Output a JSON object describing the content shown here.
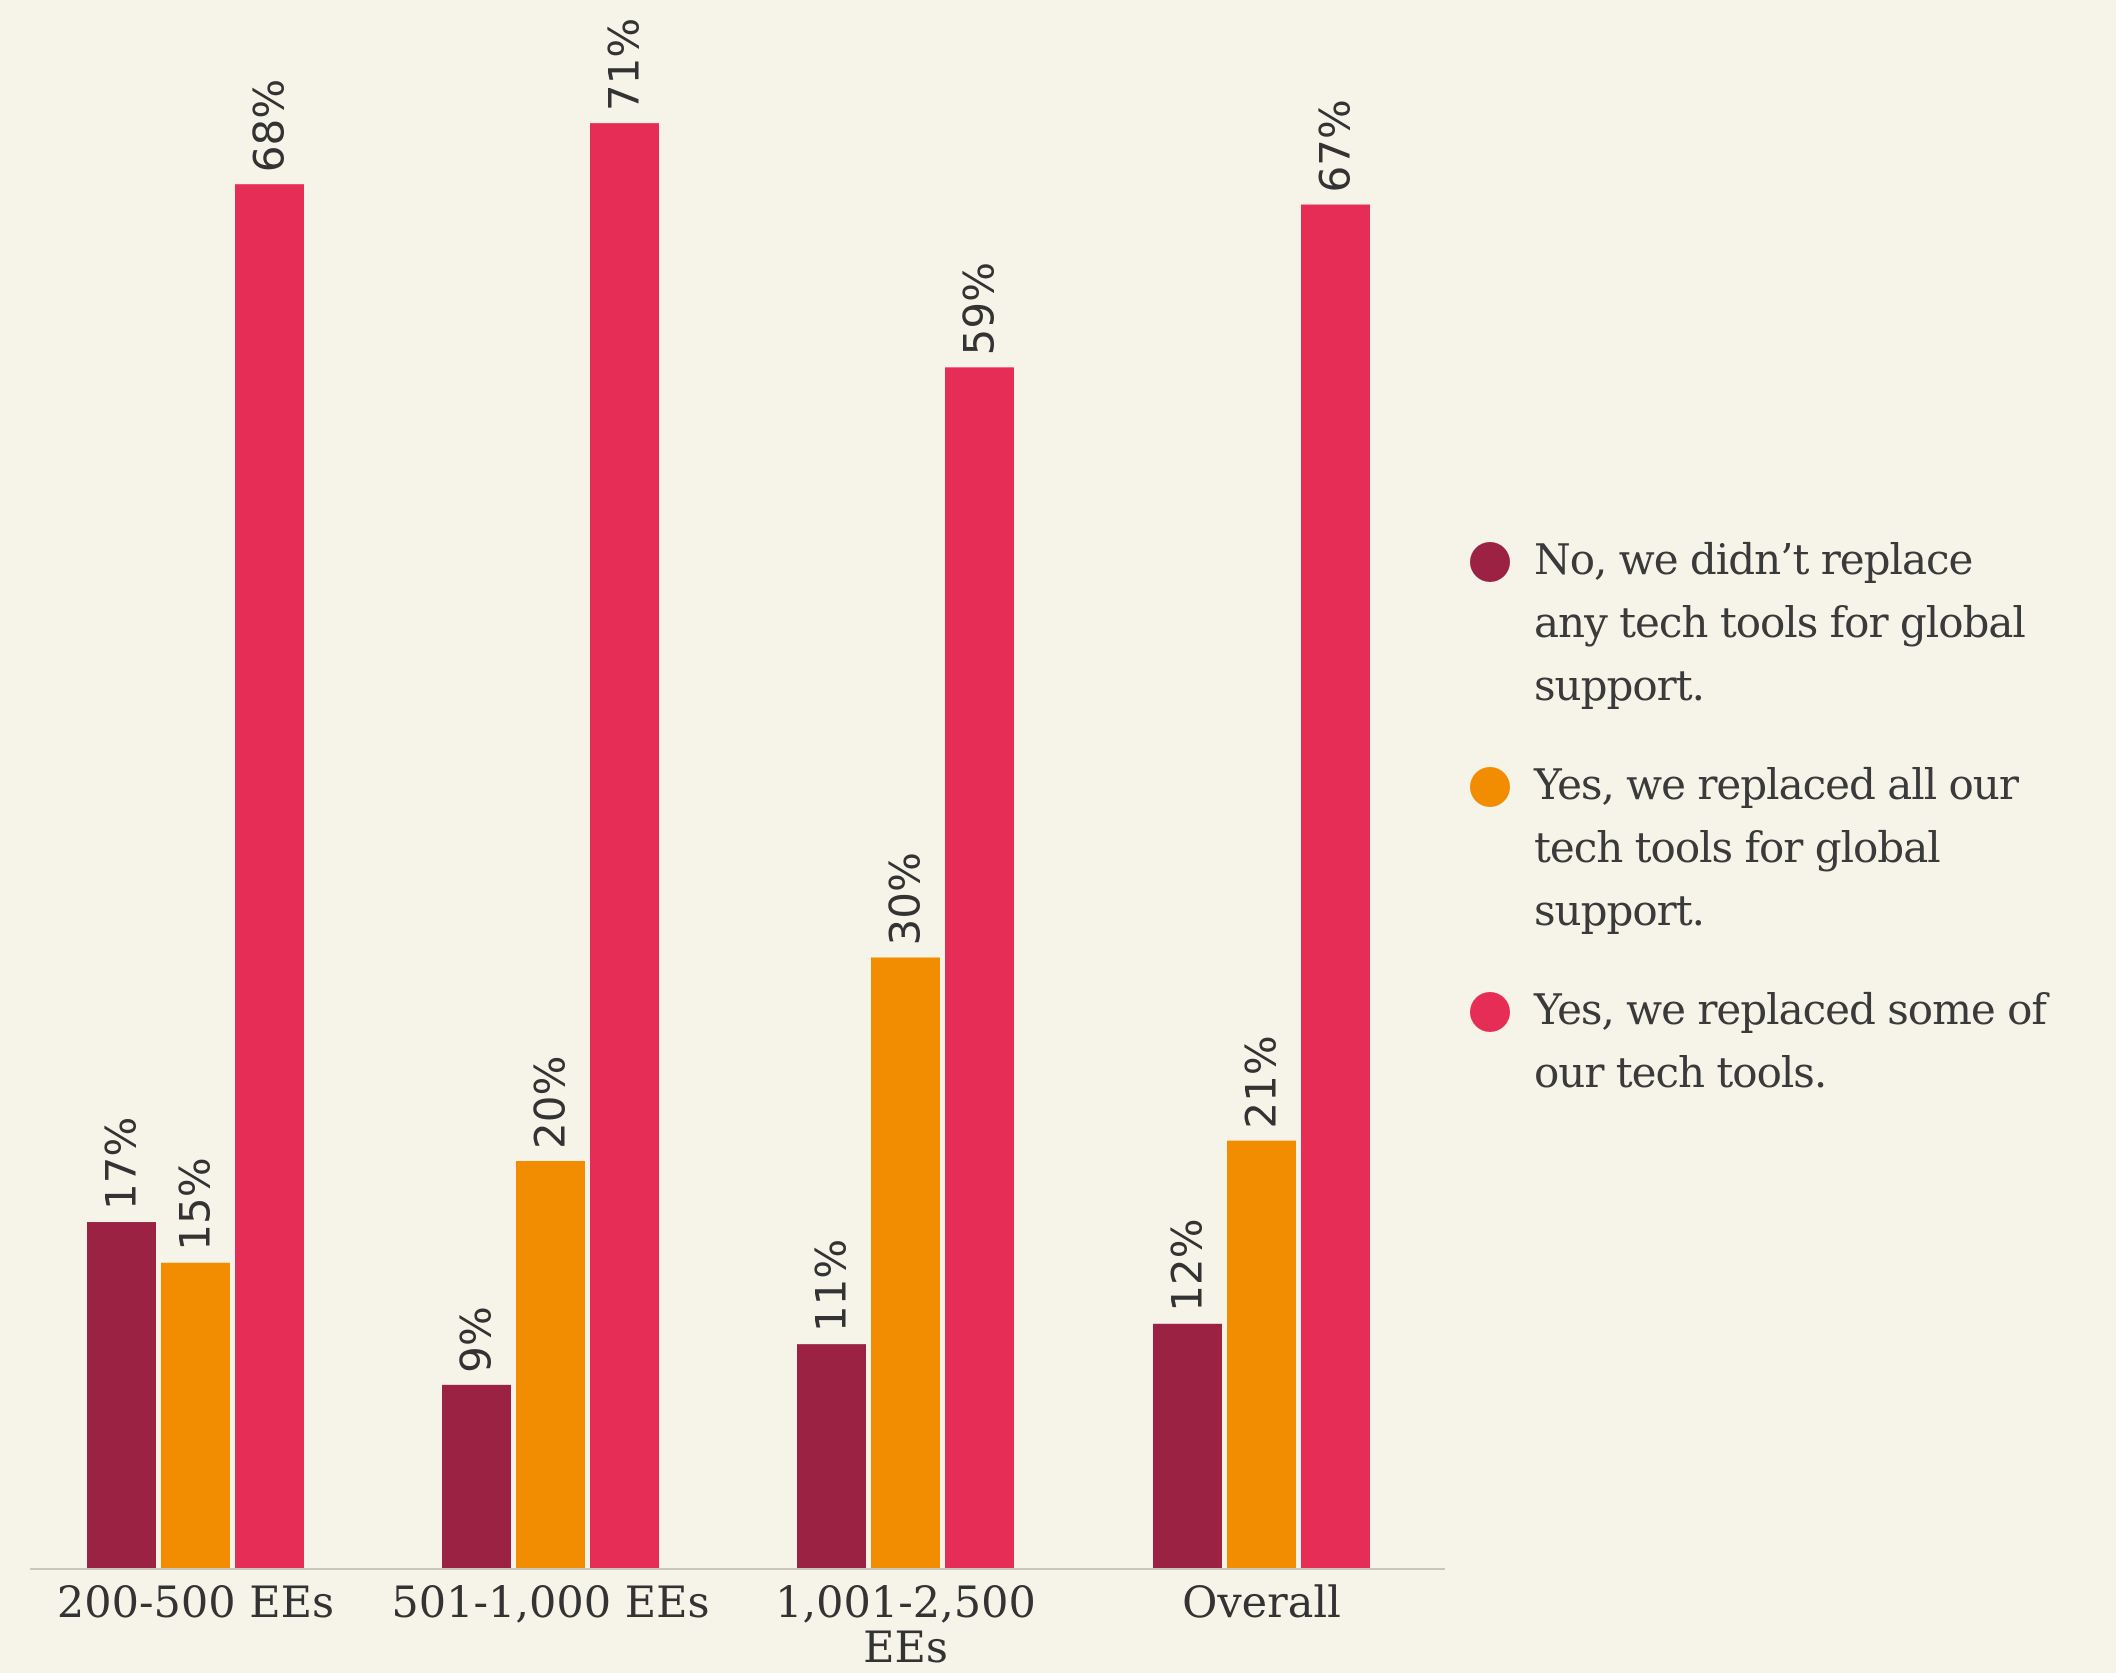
{
  "colors": {
    "background": "#f6f3e8",
    "axis": "#c9c6bc",
    "text": "#333333"
  },
  "chart_data": {
    "type": "bar",
    "title": "",
    "xlabel": "",
    "ylabel": "",
    "ylim": [
      0,
      75
    ],
    "grid": false,
    "legend_position": "right",
    "categories": [
      {
        "line1": "200-500 EEs",
        "line2": ""
      },
      {
        "line1": "501-1,000 EEs",
        "line2": ""
      },
      {
        "line1": "1,001-2,500",
        "line2": "EEs"
      },
      {
        "line1": "Overall",
        "line2": ""
      }
    ],
    "series": [
      {
        "name": "No, we didn’t replace any tech tools for global support.",
        "color": "#9b2243",
        "values": [
          17,
          9,
          11,
          12
        ],
        "labels": [
          "17%",
          "9%",
          "11%",
          "12%"
        ]
      },
      {
        "name": "Yes, we replaced all our tech tools for global support.",
        "color": "#f28c00",
        "values": [
          15,
          20,
          30,
          21
        ],
        "labels": [
          "15%",
          "20%",
          "30%",
          "21%"
        ]
      },
      {
        "name": "Yes, we replaced some of our tech tools.",
        "color": "#e62d55",
        "values": [
          68,
          71,
          59,
          67
        ],
        "labels": [
          "68%",
          "71%",
          "59%",
          "67%"
        ]
      }
    ]
  },
  "legend": {
    "items": [
      {
        "lines": [
          "No, we didn’t replace",
          "any tech tools for global",
          "support."
        ],
        "color": "#9b2243"
      },
      {
        "lines": [
          "Yes, we replaced all our",
          "tech tools for global",
          "support."
        ],
        "color": "#f28c00"
      },
      {
        "lines": [
          "Yes, we replaced some of",
          "our tech tools."
        ],
        "color": "#e62d55"
      }
    ]
  }
}
